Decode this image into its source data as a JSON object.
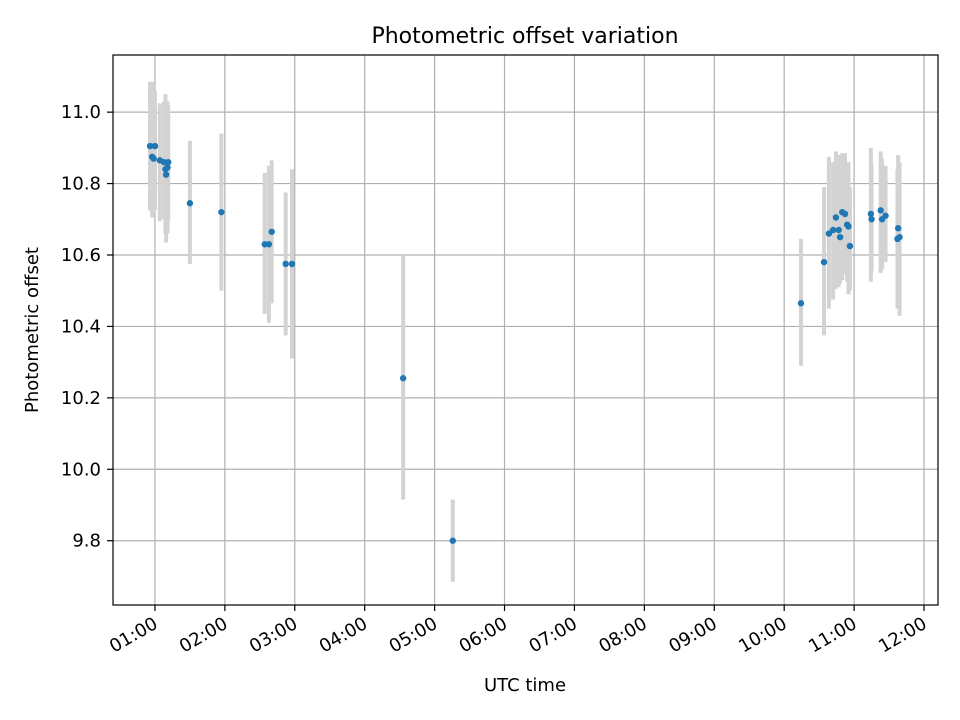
{
  "chart_data": {
    "type": "scatter",
    "title": "Photometric offset variation",
    "xlabel": "UTC time",
    "ylabel": "Photometric offset",
    "grid": true,
    "x_unit": "hours",
    "xlim": [
      0.4,
      12.2
    ],
    "ylim": [
      9.62,
      11.16
    ],
    "x_ticks": [
      1,
      2,
      3,
      4,
      5,
      6,
      7,
      8,
      9,
      10,
      11,
      12
    ],
    "x_tick_labels": [
      "01:00",
      "02:00",
      "03:00",
      "04:00",
      "05:00",
      "06:00",
      "07:00",
      "08:00",
      "09:00",
      "10:00",
      "11:00",
      "12:00"
    ],
    "y_ticks": [
      9.8,
      10.0,
      10.2,
      10.4,
      10.6,
      10.8,
      11.0
    ],
    "y_tick_labels": [
      "9.8",
      "10.0",
      "10.2",
      "10.4",
      "10.6",
      "10.8",
      "11.0"
    ],
    "marker_color": "#1f77b4",
    "errorbar_color": "#d3d3d3",
    "points": [
      {
        "x": 0.93,
        "y": 10.905,
        "lo": 10.725,
        "hi": 11.085
      },
      {
        "x": 0.96,
        "y": 10.875,
        "lo": 10.705,
        "hi": 11.085
      },
      {
        "x": 0.98,
        "y": 10.87,
        "lo": 10.72,
        "hi": 11.04
      },
      {
        "x": 1.0,
        "y": 10.905,
        "lo": 10.725,
        "hi": 11.06
      },
      {
        "x": 1.07,
        "y": 10.865,
        "lo": 10.695,
        "hi": 11.025
      },
      {
        "x": 1.13,
        "y": 10.86,
        "lo": 10.7,
        "hi": 11.03
      },
      {
        "x": 1.15,
        "y": 10.84,
        "lo": 10.66,
        "hi": 11.05
      },
      {
        "x": 1.16,
        "y": 10.825,
        "lo": 10.635,
        "hi": 11.0
      },
      {
        "x": 1.18,
        "y": 10.845,
        "lo": 10.66,
        "hi": 11.03
      },
      {
        "x": 1.19,
        "y": 10.86,
        "lo": 10.695,
        "hi": 11.02
      },
      {
        "x": 1.5,
        "y": 10.745,
        "lo": 10.575,
        "hi": 10.92
      },
      {
        "x": 1.95,
        "y": 10.72,
        "lo": 10.5,
        "hi": 10.94
      },
      {
        "x": 2.57,
        "y": 10.63,
        "lo": 10.435,
        "hi": 10.83
      },
      {
        "x": 2.63,
        "y": 10.63,
        "lo": 10.41,
        "hi": 10.85
      },
      {
        "x": 2.67,
        "y": 10.665,
        "lo": 10.465,
        "hi": 10.865
      },
      {
        "x": 2.87,
        "y": 10.575,
        "lo": 10.375,
        "hi": 10.775
      },
      {
        "x": 2.96,
        "y": 10.575,
        "lo": 10.31,
        "hi": 10.84
      },
      {
        "x": 4.55,
        "y": 10.255,
        "lo": 9.915,
        "hi": 10.6
      },
      {
        "x": 5.26,
        "y": 9.8,
        "lo": 9.685,
        "hi": 9.915
      },
      {
        "x": 10.24,
        "y": 10.465,
        "lo": 10.29,
        "hi": 10.645
      },
      {
        "x": 10.57,
        "y": 10.58,
        "lo": 10.375,
        "hi": 10.79
      },
      {
        "x": 10.64,
        "y": 10.66,
        "lo": 10.45,
        "hi": 10.875
      },
      {
        "x": 10.7,
        "y": 10.67,
        "lo": 10.475,
        "hi": 10.86
      },
      {
        "x": 10.74,
        "y": 10.705,
        "lo": 10.505,
        "hi": 10.89
      },
      {
        "x": 10.78,
        "y": 10.67,
        "lo": 10.51,
        "hi": 10.88
      },
      {
        "x": 10.8,
        "y": 10.65,
        "lo": 10.52,
        "hi": 10.85
      },
      {
        "x": 10.83,
        "y": 10.72,
        "lo": 10.53,
        "hi": 10.885
      },
      {
        "x": 10.87,
        "y": 10.715,
        "lo": 10.545,
        "hi": 10.885
      },
      {
        "x": 10.9,
        "y": 10.685,
        "lo": 10.525,
        "hi": 10.86
      },
      {
        "x": 10.92,
        "y": 10.68,
        "lo": 10.49,
        "hi": 10.86
      },
      {
        "x": 10.94,
        "y": 10.625,
        "lo": 10.5,
        "hi": 10.79
      },
      {
        "x": 11.24,
        "y": 10.715,
        "lo": 10.525,
        "hi": 10.9
      },
      {
        "x": 11.25,
        "y": 10.7,
        "lo": 10.555,
        "hi": 10.855
      },
      {
        "x": 11.38,
        "y": 10.725,
        "lo": 10.55,
        "hi": 10.89
      },
      {
        "x": 11.4,
        "y": 10.7,
        "lo": 10.56,
        "hi": 10.87
      },
      {
        "x": 11.45,
        "y": 10.71,
        "lo": 10.58,
        "hi": 10.85
      },
      {
        "x": 11.62,
        "y": 10.645,
        "lo": 10.45,
        "hi": 10.84
      },
      {
        "x": 11.63,
        "y": 10.675,
        "lo": 10.5,
        "hi": 10.88
      },
      {
        "x": 11.65,
        "y": 10.65,
        "lo": 10.43,
        "hi": 10.86
      }
    ]
  }
}
